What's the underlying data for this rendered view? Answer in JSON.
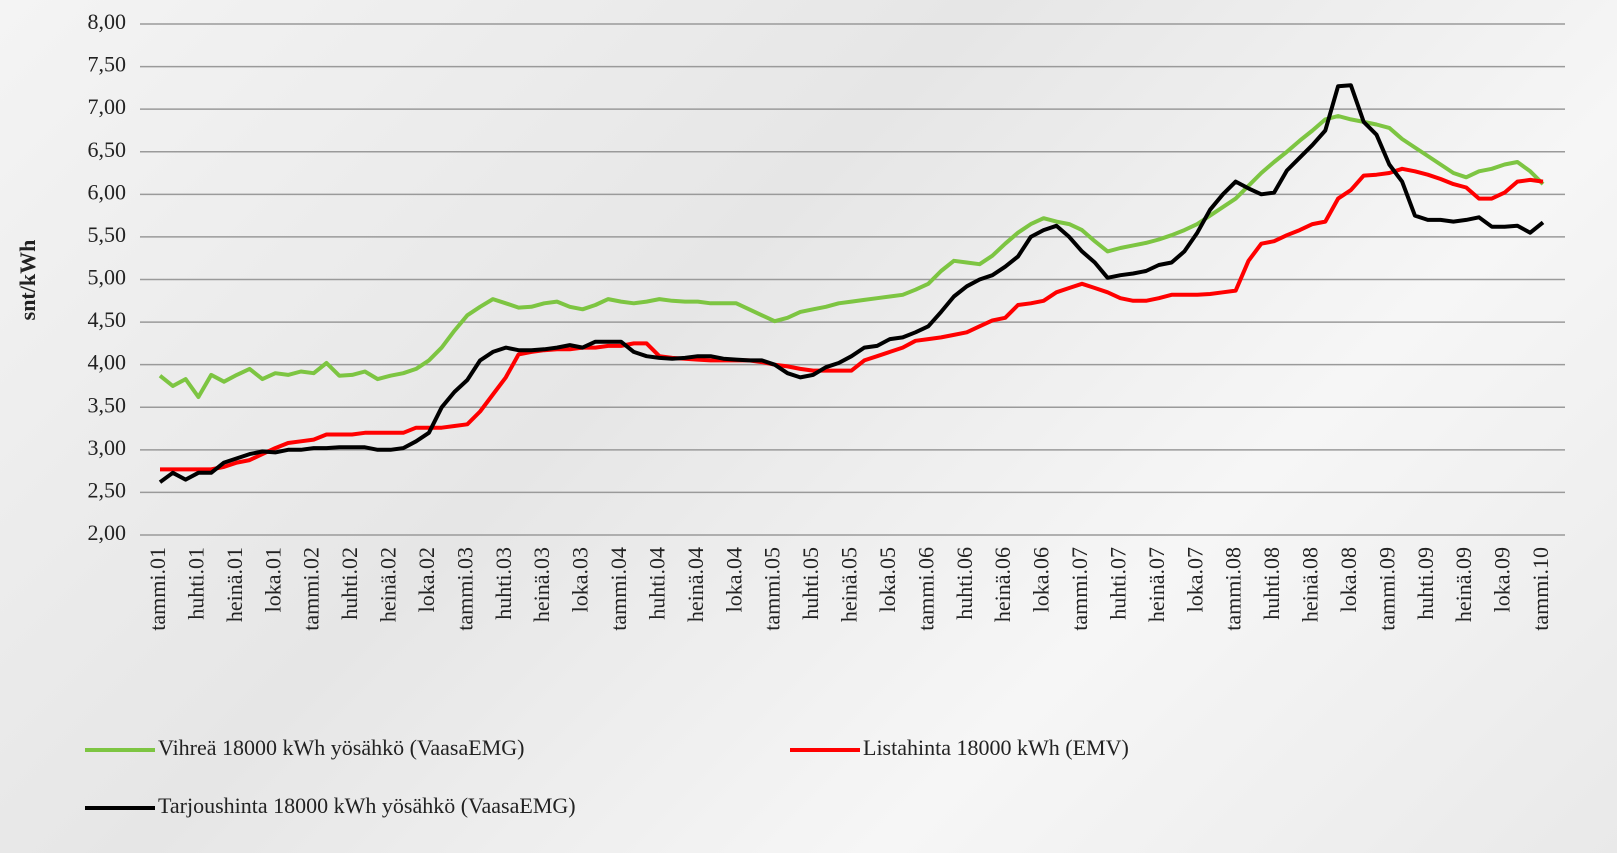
{
  "chart_data": {
    "type": "line",
    "y_label": "snt/kWh",
    "categories": [
      "tammi.01",
      null,
      null,
      "huhti.01",
      null,
      null,
      "heinä.01",
      null,
      null,
      "loka.01",
      null,
      null,
      "tammi.02",
      null,
      null,
      "huhti.02",
      null,
      null,
      "heinä.02",
      null,
      null,
      "loka.02",
      null,
      null,
      "tammi.03",
      null,
      null,
      "huhti.03",
      null,
      null,
      "heinä.03",
      null,
      null,
      "loka.03",
      null,
      null,
      "tammi.04",
      null,
      null,
      "huhti.04",
      null,
      null,
      "heinä.04",
      null,
      null,
      "loka.04",
      null,
      null,
      "tammi.05",
      null,
      null,
      "huhti.05",
      null,
      null,
      "heinä.05",
      null,
      null,
      "loka.05",
      null,
      null,
      "tammi.06",
      null,
      null,
      "huhti.06",
      null,
      null,
      "heinä.06",
      null,
      null,
      "loka.06",
      null,
      null,
      "tammi.07",
      null,
      null,
      "huhti.07",
      null,
      null,
      "heinä.07",
      null,
      null,
      "loka.07",
      null,
      null,
      "tammi.08",
      null,
      null,
      "huhti.08",
      null,
      null,
      "heinä.08",
      null,
      null,
      "loka.08",
      null,
      null,
      "tammi.09",
      null,
      null,
      "huhti.09",
      null,
      null,
      "heinä.09",
      null,
      null,
      "loka.09",
      null,
      null,
      "tammi.10"
    ],
    "series": [
      {
        "name": "Vihreä 18000 kWh yösähkö (VaasaEMG)",
        "color": "#7dc542",
        "values": [
          3.87,
          3.75,
          3.83,
          3.62,
          3.88,
          3.8,
          3.88,
          3.95,
          3.83,
          3.9,
          3.88,
          3.92,
          3.9,
          4.02,
          3.87,
          3.88,
          3.92,
          3.83,
          3.87,
          3.9,
          3.95,
          4.05,
          4.2,
          4.4,
          4.58,
          4.68,
          4.77,
          4.72,
          4.67,
          4.68,
          4.72,
          4.74,
          4.68,
          4.65,
          4.7,
          4.77,
          4.74,
          4.72,
          4.74,
          4.77,
          4.75,
          4.74,
          4.74,
          4.72,
          4.72,
          4.72,
          4.65,
          4.58,
          4.51,
          4.55,
          4.62,
          4.65,
          4.68,
          4.72,
          4.74,
          4.76,
          4.78,
          4.8,
          4.82,
          4.88,
          4.95,
          5.1,
          5.22,
          5.2,
          5.18,
          5.28,
          5.42,
          5.55,
          5.65,
          5.72,
          5.68,
          5.65,
          5.58,
          5.45,
          5.33,
          5.37,
          5.4,
          5.43,
          5.47,
          5.52,
          5.58,
          5.65,
          5.75,
          5.85,
          5.95,
          6.1,
          6.25,
          6.38,
          6.5,
          6.63,
          6.75,
          6.88,
          6.92,
          6.88,
          6.85,
          6.82,
          6.78,
          6.65,
          6.55,
          6.45,
          6.35,
          6.25,
          6.2,
          6.27,
          6.3,
          6.35,
          6.38,
          6.27,
          6.12
        ]
      },
      {
        "name": "Listahinta 18000 kWh (EMV)",
        "color": "#ff0000",
        "values": [
          2.77,
          2.77,
          2.77,
          2.77,
          2.77,
          2.8,
          2.85,
          2.88,
          2.95,
          3.02,
          3.08,
          3.1,
          3.12,
          3.18,
          3.18,
          3.18,
          3.2,
          3.2,
          3.2,
          3.2,
          3.26,
          3.26,
          3.26,
          3.28,
          3.3,
          3.45,
          3.65,
          3.85,
          4.12,
          4.15,
          4.17,
          4.18,
          4.18,
          4.2,
          4.2,
          4.22,
          4.22,
          4.25,
          4.25,
          4.1,
          4.08,
          4.07,
          4.06,
          4.05,
          4.05,
          4.05,
          4.05,
          4.03,
          4.0,
          3.98,
          3.95,
          3.93,
          3.93,
          3.93,
          3.93,
          4.05,
          4.1,
          4.15,
          4.2,
          4.28,
          4.3,
          4.32,
          4.35,
          4.38,
          4.45,
          4.52,
          4.55,
          4.7,
          4.72,
          4.75,
          4.85,
          4.9,
          4.95,
          4.9,
          4.85,
          4.78,
          4.75,
          4.75,
          4.78,
          4.82,
          4.82,
          4.82,
          4.83,
          4.85,
          4.87,
          5.22,
          5.42,
          5.45,
          5.52,
          5.58,
          5.65,
          5.68,
          5.95,
          6.05,
          6.22,
          6.23,
          6.25,
          6.3,
          6.27,
          6.23,
          6.18,
          6.12,
          6.08,
          5.95,
          5.95,
          6.02,
          6.15,
          6.17,
          6.15
        ]
      },
      {
        "name": "Tarjoushinta 18000 kWh yösähkö (VaasaEMG)",
        "color": "#000000",
        "values": [
          2.62,
          2.73,
          2.65,
          2.73,
          2.73,
          2.85,
          2.9,
          2.95,
          2.98,
          2.97,
          3.0,
          3.0,
          3.02,
          3.02,
          3.03,
          3.03,
          3.03,
          3.0,
          3.0,
          3.02,
          3.1,
          3.2,
          3.5,
          3.68,
          3.82,
          4.05,
          4.15,
          4.2,
          4.17,
          4.17,
          4.18,
          4.2,
          4.23,
          4.2,
          4.27,
          4.27,
          4.27,
          4.15,
          4.1,
          4.08,
          4.07,
          4.08,
          4.1,
          4.1,
          4.07,
          4.06,
          4.05,
          4.05,
          4.0,
          3.9,
          3.85,
          3.88,
          3.97,
          4.02,
          4.1,
          4.2,
          4.22,
          4.3,
          4.32,
          4.38,
          4.45,
          4.62,
          4.8,
          4.92,
          5.0,
          5.05,
          5.15,
          5.27,
          5.5,
          5.58,
          5.63,
          5.5,
          5.33,
          5.2,
          5.02,
          5.05,
          5.07,
          5.1,
          5.17,
          5.2,
          5.33,
          5.55,
          5.82,
          6.0,
          6.15,
          6.07,
          6.0,
          6.02,
          6.28,
          6.43,
          6.58,
          6.75,
          7.27,
          7.28,
          6.85,
          6.7,
          6.35,
          6.15,
          5.75,
          5.7,
          5.7,
          5.68,
          5.7,
          5.73,
          5.62,
          5.62,
          5.63,
          5.55,
          5.67
        ]
      }
    ],
    "ylim": [
      2,
      8
    ],
    "yticks": [
      {
        "value": 2,
        "label": "2,00"
      },
      {
        "value": 2.5,
        "label": "2,50"
      },
      {
        "value": 3,
        "label": "3,00"
      },
      {
        "value": 3.5,
        "label": "3,50"
      },
      {
        "value": 4,
        "label": "4,00"
      },
      {
        "value": 4.5,
        "label": "4,50"
      },
      {
        "value": 5,
        "label": "5,00"
      },
      {
        "value": 5.5,
        "label": "5,50"
      },
      {
        "value": 6,
        "label": "6,00"
      },
      {
        "value": 6.5,
        "label": "6,50"
      },
      {
        "value": 7,
        "label": "7,00"
      },
      {
        "value": 7.5,
        "label": "7,50"
      },
      {
        "value": 8,
        "label": "8,00"
      }
    ],
    "grid": true,
    "legend": "bottom"
  }
}
